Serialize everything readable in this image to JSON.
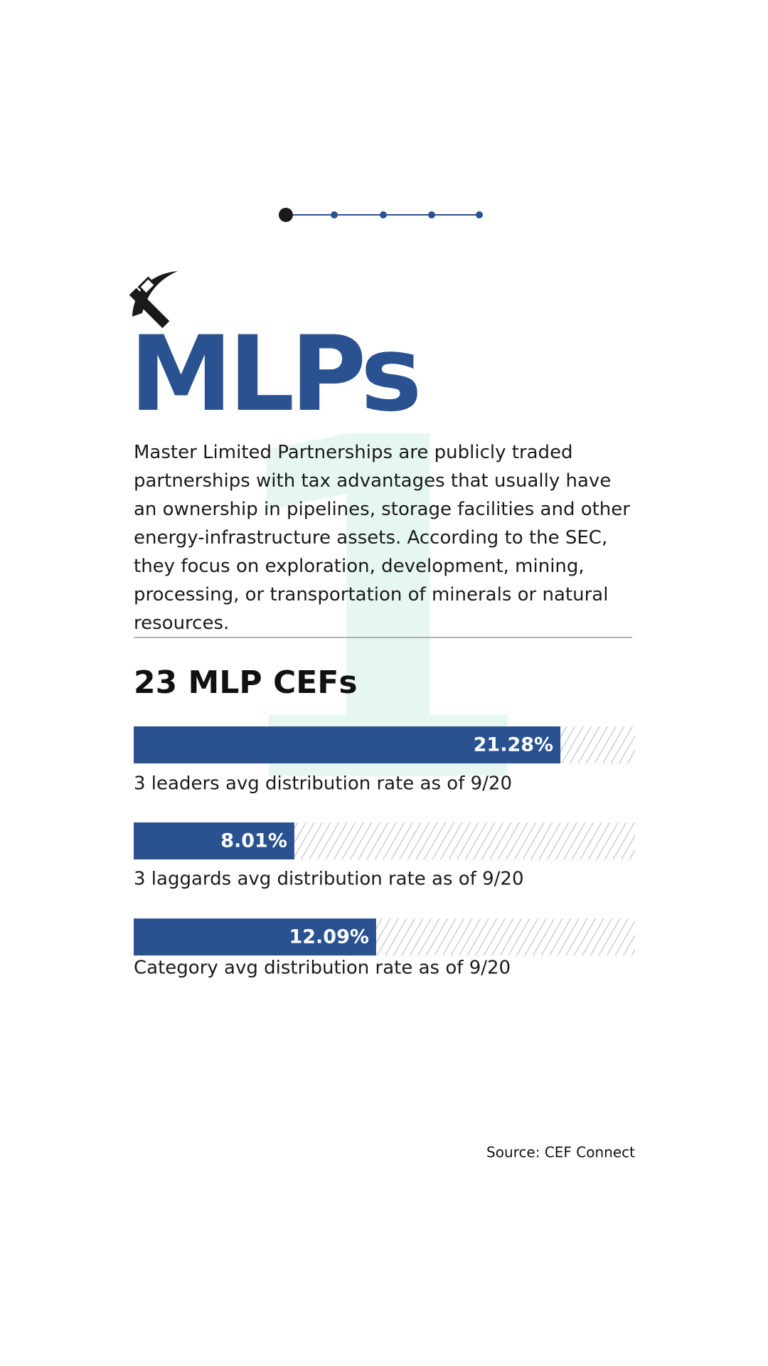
{
  "header": {
    "title": "MLPs",
    "description": "Master Limited Partnerships are publicly traded partnerships with tax advantages that usually have an ownership in pipelines, storage facilities and other energy-infrastructure assets. According to the SEC, they focus on exploration, development, mining, processing, or transportation of minerals or natural resources.",
    "background_number": "1"
  },
  "chart_data": {
    "type": "bar",
    "orientation": "horizontal",
    "title": "23 MLP CEFs",
    "categories": [
      "3 leaders avg distribution rate as of 9/20",
      "3 laggards avg distribution rate as of 9/20",
      "Category avg distribution rate as of 9/20"
    ],
    "values": [
      21.28,
      8.01,
      12.09
    ],
    "value_labels": [
      "21.28%",
      "8.01%",
      "12.09%"
    ],
    "color": "#2a5291",
    "xlim": [
      0,
      25
    ]
  },
  "source": "Source: CEF Connect"
}
